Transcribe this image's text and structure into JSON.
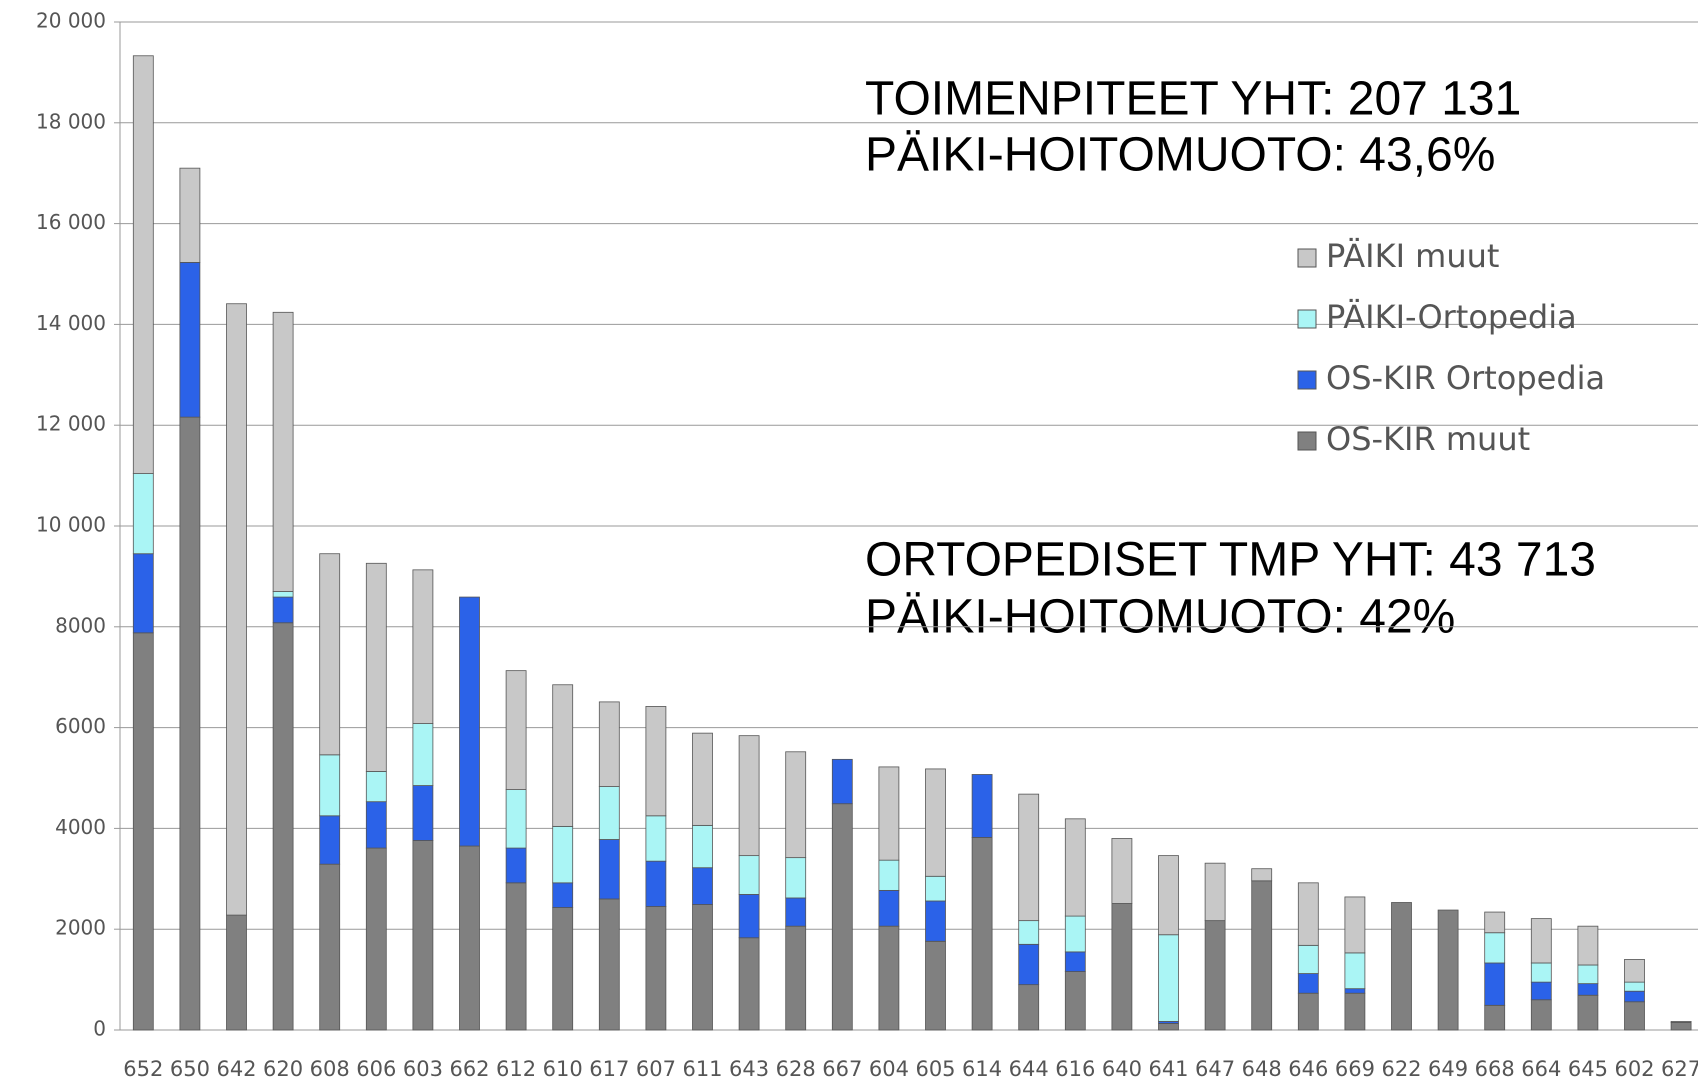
{
  "chart_data": {
    "type": "stacked_bar",
    "annotations": [
      "TOIMENPITEET YHT: 207 131",
      "PÄIKI-HOITOMUOTO: 43,6%",
      "ORTOPEDISET TMP YHT:  43 713",
      "PÄIKI-HOITOMUOTO: 42%"
    ],
    "categories": [
      "652",
      "650",
      "642",
      "620",
      "608",
      "606",
      "603",
      "662",
      "612",
      "610",
      "617",
      "607",
      "611",
      "643",
      "628",
      "667",
      "604",
      "605",
      "614",
      "644",
      "616",
      "640",
      "641",
      "647",
      "648",
      "646",
      "669",
      "622",
      "649",
      "668",
      "664",
      "645",
      "602",
      "627"
    ],
    "series": [
      {
        "name": "OS-KIR muut",
        "color": "#808080",
        "values": [
          7880,
          12160,
          2280,
          8080,
          3290,
          3610,
          3760,
          3650,
          2920,
          2430,
          2600,
          2450,
          2490,
          1830,
          2060,
          4490,
          2060,
          1760,
          3820,
          900,
          1160,
          2510,
          130,
          2170,
          2960,
          730,
          730,
          2530,
          2380,
          490,
          600,
          690,
          560,
          150
        ]
      },
      {
        "name": "OS-KIR Ortopedia",
        "color": "#2b62e8",
        "values": [
          1570,
          3070,
          0,
          510,
          960,
          920,
          1090,
          4940,
          690,
          490,
          1180,
          900,
          730,
          860,
          560,
          880,
          710,
          800,
          1250,
          800,
          390,
          0,
          40,
          0,
          0,
          390,
          90,
          0,
          0,
          840,
          350,
          230,
          210,
          0
        ]
      },
      {
        "name": "PÄIKI-Ortopedia",
        "color": "#aaf5f5",
        "values": [
          1590,
          0,
          0,
          110,
          1210,
          600,
          1230,
          0,
          1160,
          1120,
          1050,
          900,
          840,
          770,
          800,
          0,
          600,
          490,
          0,
          470,
          710,
          0,
          1720,
          0,
          0,
          560,
          710,
          0,
          0,
          600,
          380,
          370,
          180,
          0
        ]
      },
      {
        "name": "PÄIKI muut",
        "color": "#c8c8c8",
        "values": [
          8290,
          1870,
          12130,
          5540,
          3990,
          4130,
          3050,
          0,
          2360,
          2810,
          1680,
          2170,
          1830,
          2380,
          2100,
          0,
          1850,
          2130,
          0,
          2510,
          1930,
          1290,
          1570,
          1140,
          240,
          1240,
          1110,
          0,
          0,
          410,
          880,
          770,
          450,
          20
        ]
      }
    ],
    "ylim": [
      0,
      20000
    ],
    "yticks": [
      0,
      {
        "value": 2000,
        "label": "2000"
      },
      {
        "value": 4000,
        "label": "4000"
      },
      {
        "value": 6000,
        "label": "6000"
      },
      {
        "value": 8000,
        "label": "8000"
      },
      {
        "value": 10000,
        "label": "10 000"
      },
      {
        "value": 12000,
        "label": "12 000"
      },
      {
        "value": 14000,
        "label": "14 000"
      },
      {
        "value": 16000,
        "label": "16 000"
      },
      {
        "value": 18000,
        "label": "18 000"
      },
      {
        "value": 20000,
        "label": "20 000"
      }
    ],
    "grid": true
  }
}
